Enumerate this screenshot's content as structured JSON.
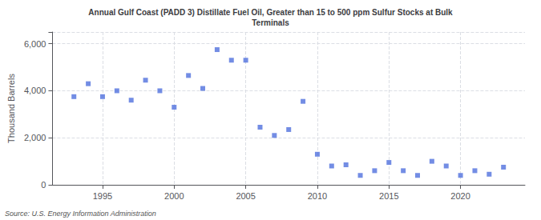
{
  "chart_data": {
    "type": "scatter",
    "title": "Annual Gulf Coast (PADD 3) Distillate Fuel Oil, Greater than 15 to 500 ppm Sulfur Stocks at Bulk\nTerminals",
    "ylabel": "Thousand Barrels",
    "source": "Source: U.S. Energy Information Administration",
    "x": [
      1993,
      1994,
      1995,
      1996,
      1997,
      1998,
      1999,
      2000,
      2001,
      2002,
      2003,
      2004,
      2005,
      2006,
      2007,
      2008,
      2009,
      2010,
      2011,
      2012,
      2013,
      2014,
      2015,
      2016,
      2017,
      2018,
      2019,
      2020,
      2021,
      2022,
      2023
    ],
    "values": [
      3750,
      4300,
      3750,
      4000,
      3600,
      4450,
      4000,
      3300,
      4650,
      4100,
      5750,
      5300,
      5300,
      2450,
      2100,
      2350,
      3550,
      1300,
      800,
      850,
      400,
      600,
      950,
      600,
      400,
      1000,
      800,
      400,
      600,
      450,
      750
    ],
    "xlim": [
      1991.5,
      2024.5
    ],
    "xticks": [
      1995,
      2000,
      2005,
      2010,
      2015,
      2020
    ],
    "ylim": [
      0,
      6500
    ],
    "yticks": [
      0,
      {
        "value": 2000,
        "label": "2,000"
      },
      {
        "value": 4000,
        "label": "4,000"
      },
      {
        "value": 6000,
        "label": "6,000"
      }
    ],
    "grid": true,
    "marker": "square"
  }
}
